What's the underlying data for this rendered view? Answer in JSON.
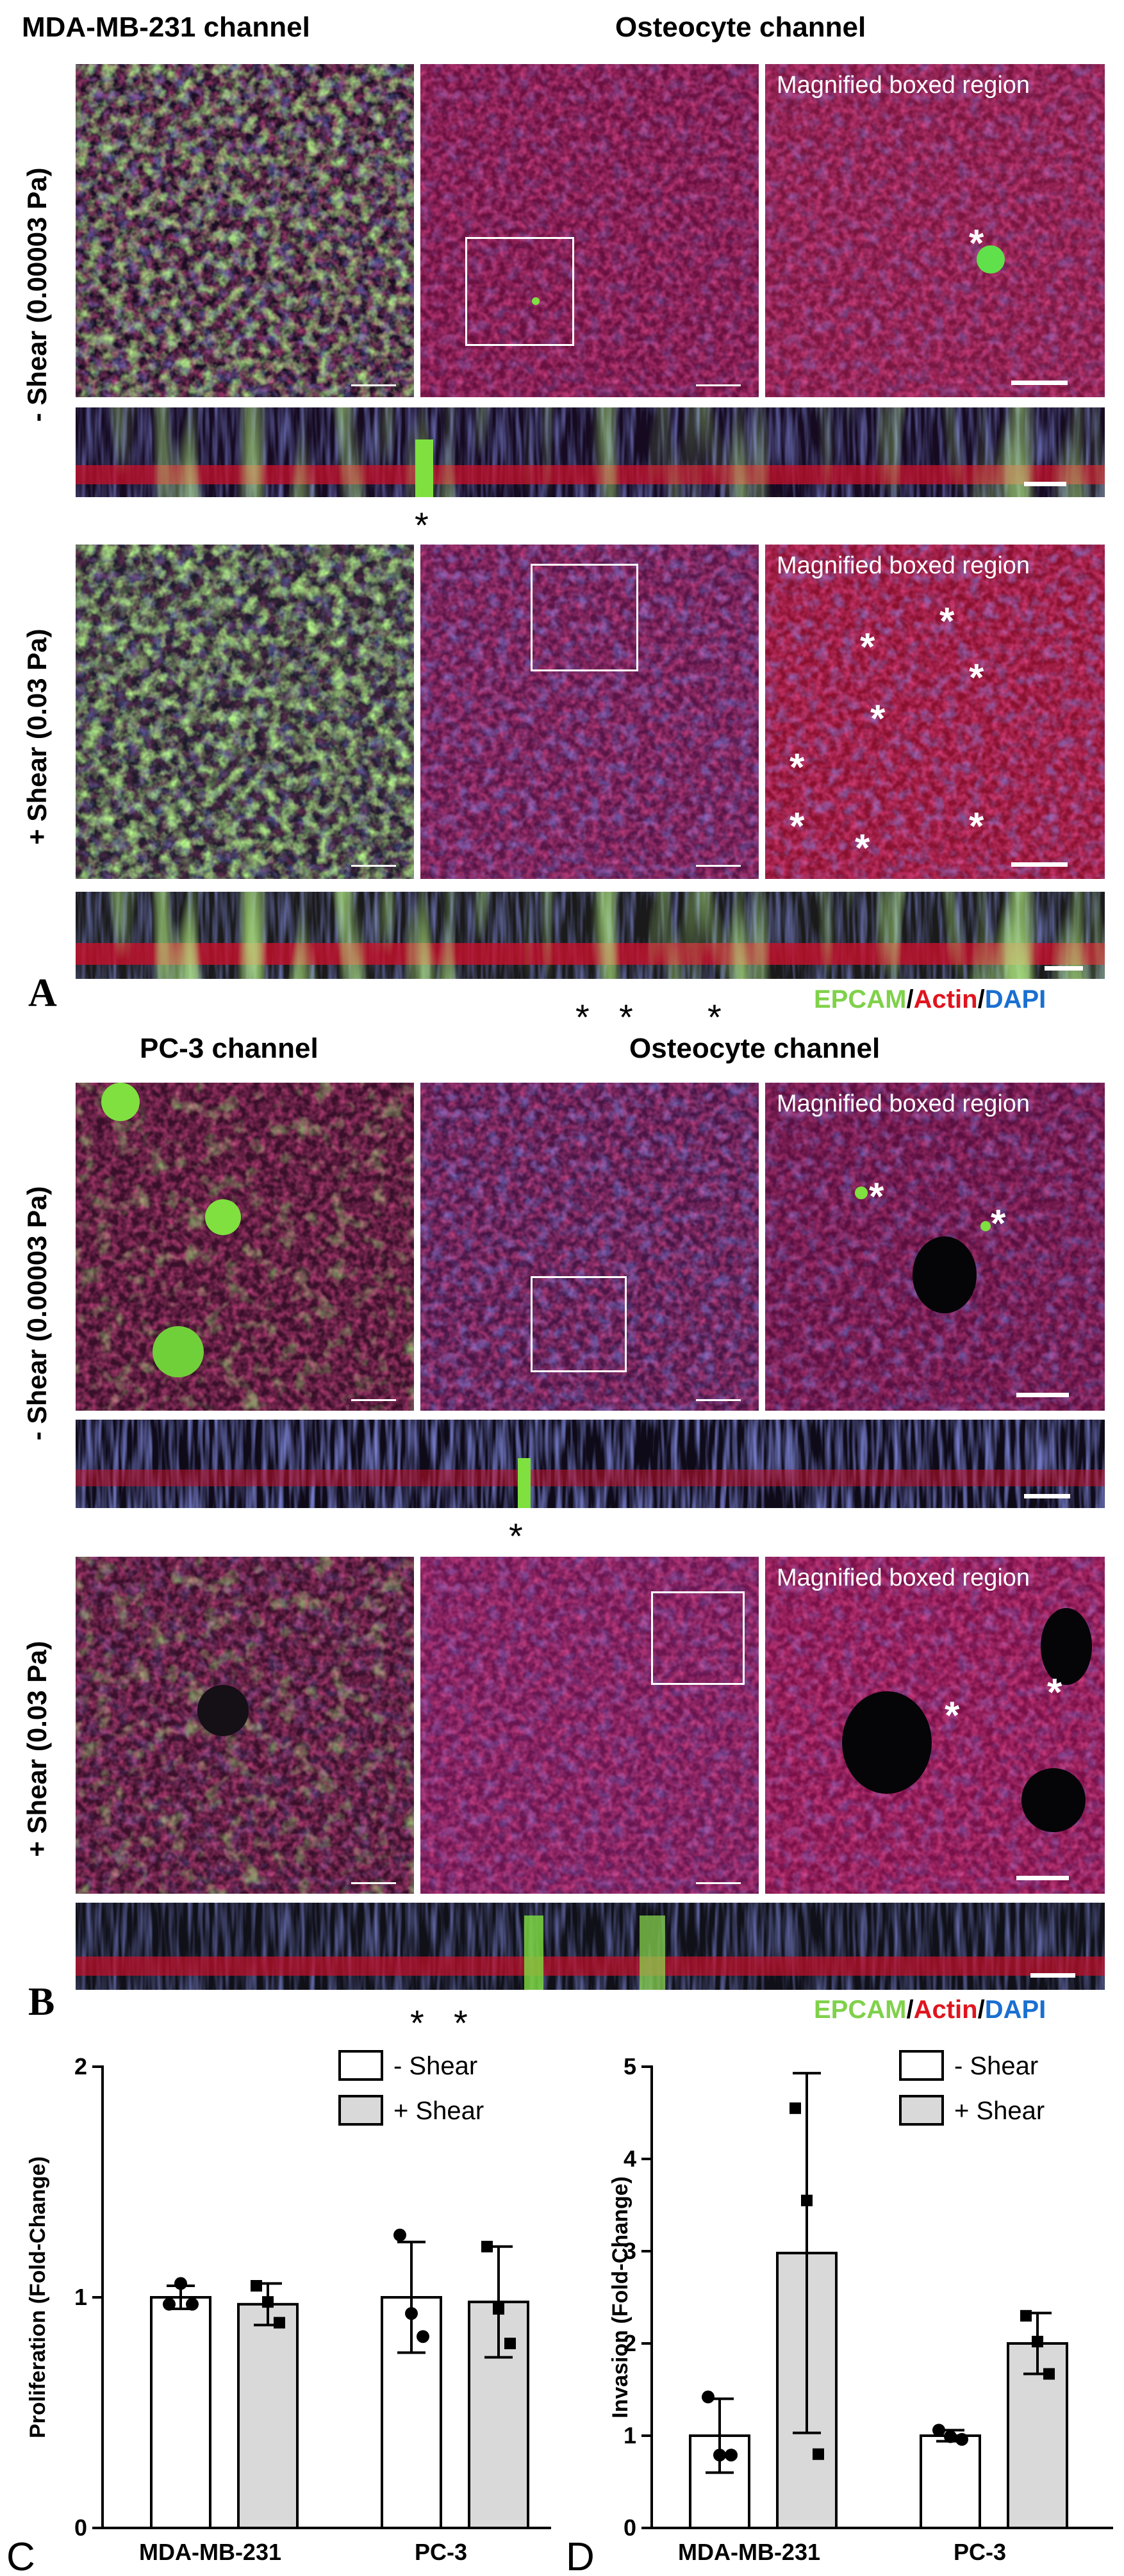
{
  "panel_a": {
    "letter": "A",
    "col1_title": "MDA-MB-231 channel",
    "col2_title": "Osteocyte channel",
    "magnified_label": "Magnified boxed region",
    "row1_label": "- Shear (0.00003 Pa)",
    "row2_label": "+ Shear (0.03 Pa)",
    "star": "*",
    "legend": {
      "epcam": "EPCAM",
      "actin": "Actin",
      "dapi": "DAPI",
      "sep": "/"
    }
  },
  "panel_b": {
    "letter": "B",
    "col1_title": "PC-3 channel",
    "col2_title": "Osteocyte channel",
    "magnified_label": "Magnified boxed region",
    "row1_label": "- Shear (0.00003 Pa)",
    "row2_label": "+ Shear (0.03 Pa)",
    "star": "*",
    "legend": {
      "epcam": "EPCAM",
      "actin": "Actin",
      "dapi": "DAPI",
      "sep": "/"
    }
  },
  "colors": {
    "epcam": "#7fd14a",
    "actin": "#e0141e",
    "dapi": "#1a6fd1"
  },
  "chart_data": [
    {
      "type": "bar",
      "panel_letter": "C",
      "ylabel": "Proliferation (Fold-Change)",
      "categories": [
        "MDA-MB-231",
        "PC-3"
      ],
      "yticks": [
        0,
        1,
        2
      ],
      "ylim": [
        0,
        2
      ],
      "legend": [
        "- Shear",
        "+ Shear"
      ],
      "legend_position": "top-right",
      "series": [
        {
          "name": "- Shear",
          "fill": "#ffffff",
          "values": [
            1.0,
            1.0
          ],
          "error": [
            0.05,
            0.24
          ],
          "points": [
            [
              0.97,
              1.06,
              0.97
            ],
            [
              1.27,
              0.93,
              0.83
            ]
          ],
          "marker": "circle"
        },
        {
          "name": "+ Shear",
          "fill": "#d9d9d9",
          "values": [
            0.97,
            0.98
          ],
          "error": [
            0.09,
            0.24
          ],
          "points": [
            [
              1.05,
              0.98,
              0.89
            ],
            [
              1.22,
              0.95,
              0.8
            ]
          ],
          "marker": "square"
        }
      ]
    },
    {
      "type": "bar",
      "panel_letter": "D",
      "ylabel": "Invasion (Fold-Change)",
      "categories": [
        "MDA-MB-231",
        "PC-3"
      ],
      "yticks": [
        0,
        1,
        2,
        3,
        4,
        5
      ],
      "ylim": [
        0,
        5
      ],
      "legend": [
        "- Shear",
        "+ Shear"
      ],
      "legend_position": "top-right",
      "series": [
        {
          "name": "- Shear",
          "fill": "#ffffff",
          "values": [
            1.0,
            1.0
          ],
          "error": [
            0.4,
            0.06
          ],
          "points": [
            [
              1.42,
              0.79,
              0.79
            ],
            [
              1.06,
              0.99,
              0.96
            ]
          ],
          "marker": "circle"
        },
        {
          "name": "+ Shear",
          "fill": "#d9d9d9",
          "values": [
            2.98,
            2.0
          ],
          "error": [
            1.95,
            0.33
          ],
          "points": [
            [
              4.55,
              3.55,
              0.8
            ],
            [
              2.3,
              2.02,
              1.67
            ]
          ],
          "marker": "square"
        }
      ]
    }
  ]
}
